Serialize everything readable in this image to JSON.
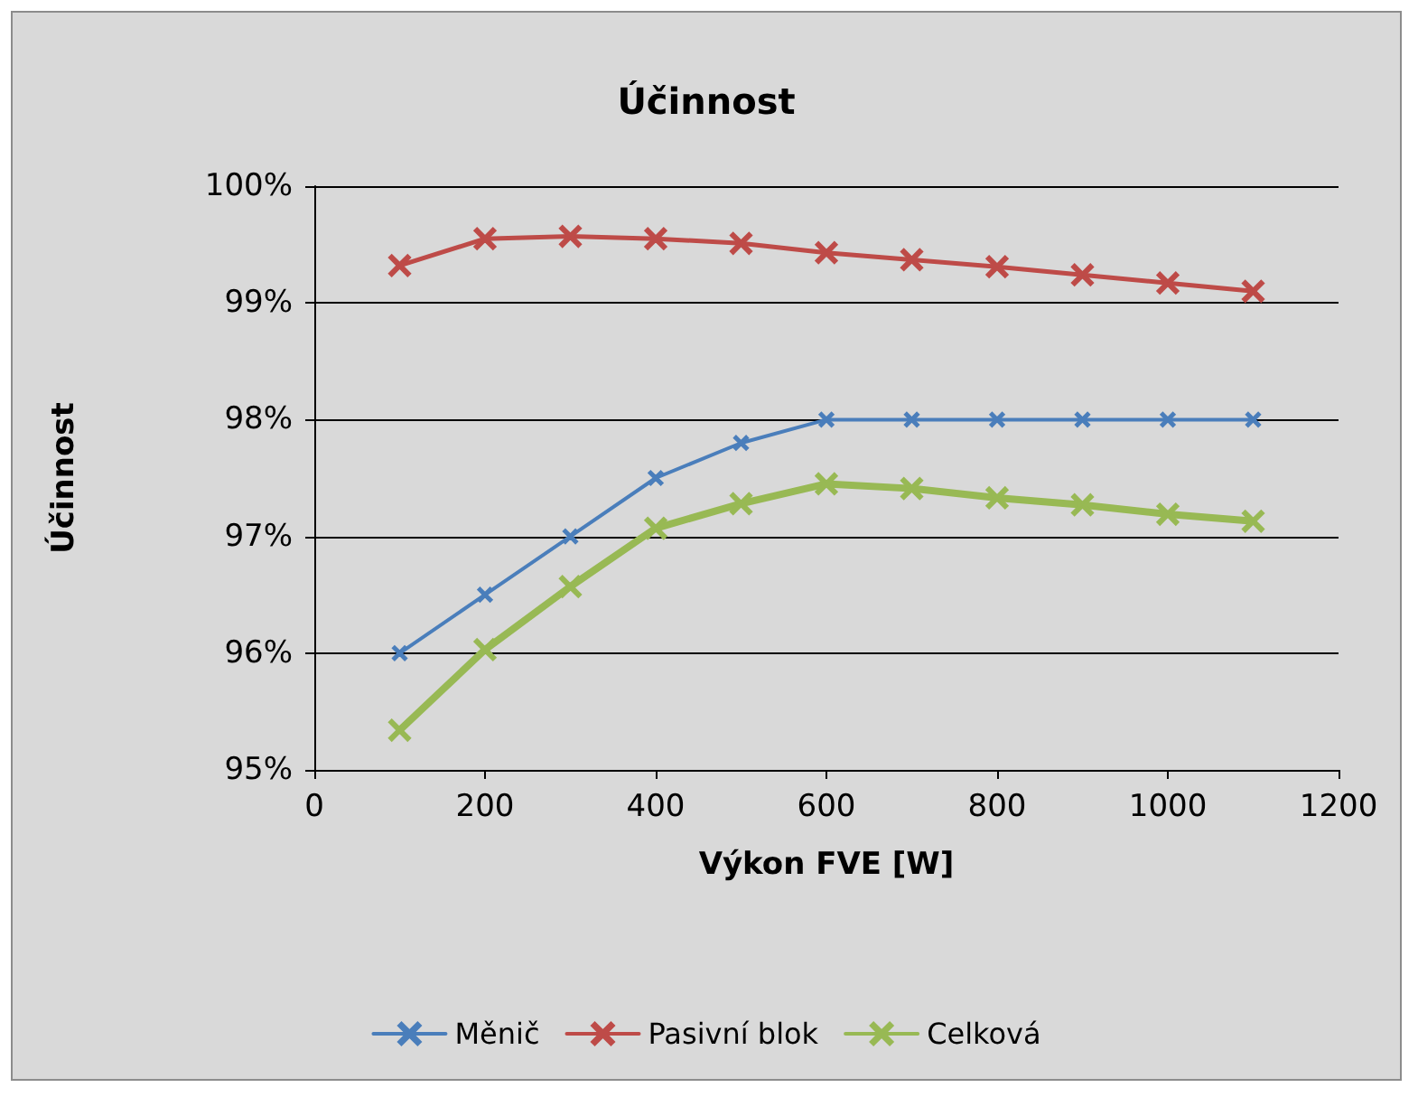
{
  "chart_data": {
    "type": "line",
    "title": "Účinnost",
    "xlabel": "Výkon FVE [W]",
    "ylabel": "Účinnost",
    "x": [
      100,
      200,
      300,
      400,
      500,
      600,
      700,
      800,
      900,
      1000,
      1100
    ],
    "series": [
      {
        "name": "Měnič",
        "color": "#4a7ebb",
        "values": [
          96,
          96.5,
          97,
          97.5,
          97.8,
          98,
          98,
          98,
          98,
          98,
          98
        ]
      },
      {
        "name": "Pasivní blok",
        "color": "#be4b48",
        "values": [
          99.32,
          99.55,
          99.57,
          99.55,
          99.51,
          99.43,
          99.37,
          99.31,
          99.24,
          99.17,
          99.1
        ]
      },
      {
        "name": "Celková",
        "color": "#98b954",
        "values": [
          95.34,
          96.03,
          96.57,
          97.07,
          97.28,
          97.45,
          97.41,
          97.33,
          97.27,
          97.19,
          97.13
        ]
      }
    ],
    "xlim": [
      0,
      1200
    ],
    "xticks": [
      0,
      200,
      400,
      600,
      800,
      1000,
      1200
    ],
    "ylim": [
      95,
      100
    ],
    "yticks": [
      {
        "value": 95,
        "label": "95%"
      },
      {
        "value": 96,
        "label": "96%"
      },
      {
        "value": 97,
        "label": "97%"
      },
      {
        "value": 98,
        "label": "98%"
      },
      {
        "value": 99,
        "label": "99%"
      },
      {
        "value": 100,
        "label": "100%"
      }
    ],
    "grid": "y",
    "legend": "bottom",
    "marker": "cross",
    "line_style": "solid"
  }
}
